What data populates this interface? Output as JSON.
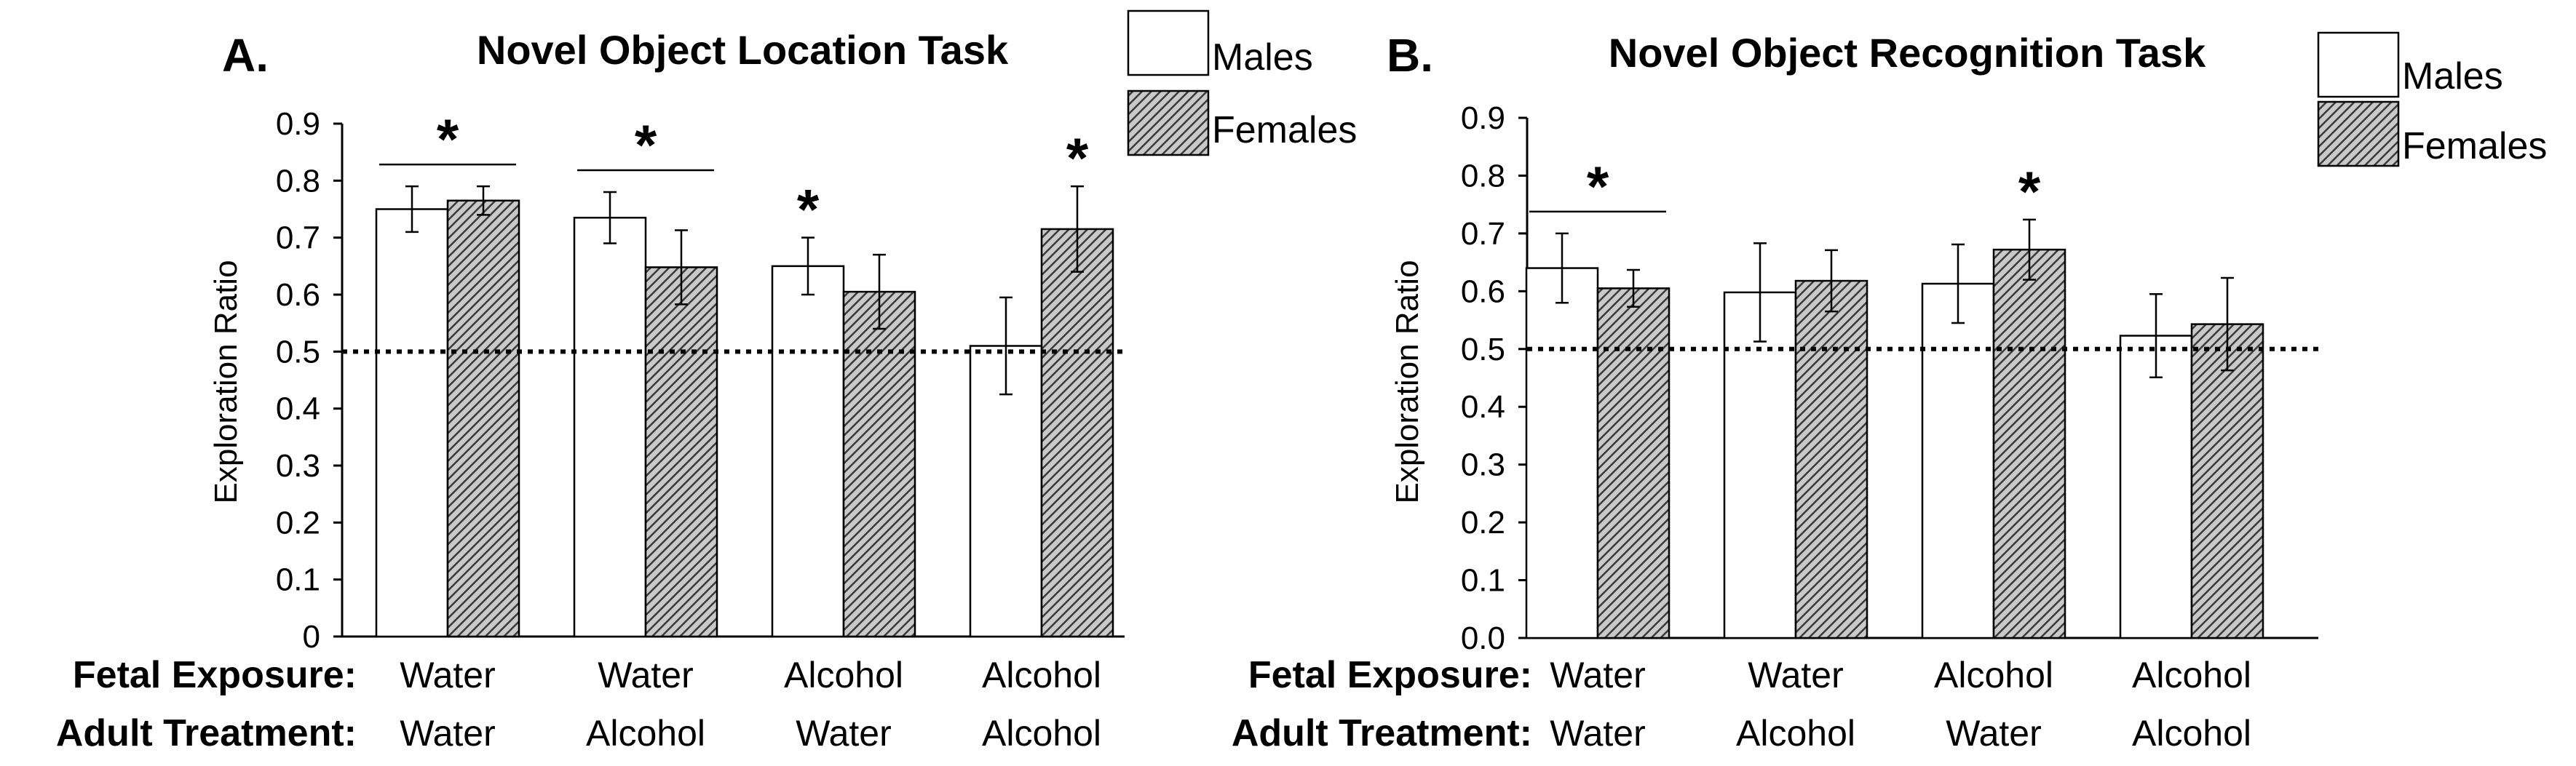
{
  "colors": {
    "male_fill": "#ffffff",
    "female_fill": "hatched-gray",
    "stroke": "#000000"
  },
  "x_rows": {
    "fetal_label": "Fetal Exposure:",
    "adult_label": "Adult Treatment:"
  },
  "chart_data": [
    {
      "type": "bar",
      "panel_label": "A.",
      "title": "Novel Object Location Task",
      "ylabel": "Exploration Ratio",
      "xlabel": "",
      "ylim": [
        0,
        0.9
      ],
      "yticks": [
        "0",
        "0.1",
        "0.2",
        "0.3",
        "0.4",
        "0.5",
        "0.6",
        "0.7",
        "0.8",
        "0.9"
      ],
      "reference_line": 0.5,
      "categories": [
        {
          "fetal": "Water",
          "adult": "Water"
        },
        {
          "fetal": "Water",
          "adult": "Alcohol"
        },
        {
          "fetal": "Alcohol",
          "adult": "Water"
        },
        {
          "fetal": "Alcohol",
          "adult": "Alcohol"
        }
      ],
      "series": [
        {
          "name": "Males",
          "values": [
            0.75,
            0.735,
            0.65,
            0.51
          ],
          "errors": [
            0.04,
            0.045,
            0.05,
            0.085
          ]
        },
        {
          "name": "Females",
          "values": [
            0.765,
            0.648,
            0.605,
            0.715
          ],
          "errors": [
            0.025,
            0.065,
            0.065,
            0.075
          ]
        }
      ],
      "significance": [
        {
          "type": "bracket",
          "group": 0,
          "label": "*"
        },
        {
          "type": "bracket",
          "group": 1,
          "label": "*"
        },
        {
          "type": "bar",
          "group": 2,
          "series": 0,
          "label": "*"
        },
        {
          "type": "bar",
          "group": 3,
          "series": 1,
          "label": "*"
        }
      ],
      "legend_position": "top-right"
    },
    {
      "type": "bar",
      "panel_label": "B.",
      "title": "Novel Object Recognition Task",
      "ylabel": "Exploration Ratio",
      "xlabel": "",
      "ylim": [
        0,
        0.9
      ],
      "yticks": [
        "0.0",
        "0.1",
        "0.2",
        "0.3",
        "0.4",
        "0.5",
        "0.6",
        "0.7",
        "0.8",
        "0.9"
      ],
      "reference_line": 0.5,
      "categories": [
        {
          "fetal": "Water",
          "adult": "Water"
        },
        {
          "fetal": "Water",
          "adult": "Alcohol"
        },
        {
          "fetal": "Alcohol",
          "adult": "Water"
        },
        {
          "fetal": "Alcohol",
          "adult": "Alcohol"
        }
      ],
      "series": [
        {
          "name": "Males",
          "values": [
            0.64,
            0.598,
            0.613,
            0.523
          ],
          "errors": [
            0.06,
            0.085,
            0.068,
            0.072
          ]
        },
        {
          "name": "Females",
          "values": [
            0.605,
            0.618,
            0.672,
            0.543
          ],
          "errors": [
            0.032,
            0.053,
            0.052,
            0.08
          ]
        }
      ],
      "significance": [
        {
          "type": "bracket",
          "group": 0,
          "label": "*"
        },
        {
          "type": "bar",
          "group": 2,
          "series": 1,
          "label": "*"
        }
      ],
      "legend_position": "top-right"
    }
  ]
}
